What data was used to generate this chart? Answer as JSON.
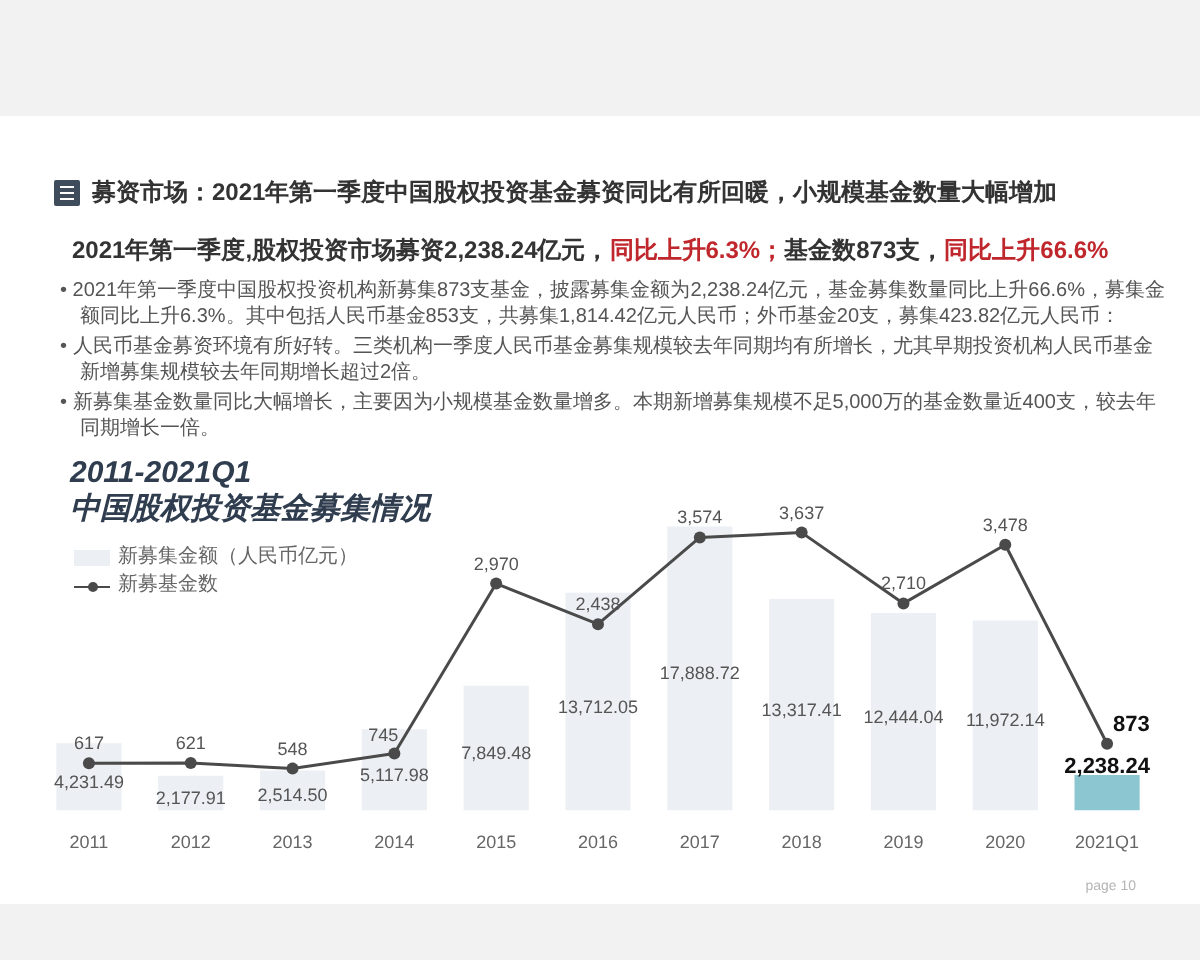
{
  "chart_data": {
    "type": "bar",
    "title": "募资市场：2021年第一季度中国股权投资基金募资同比有所回暖，小规模基金数量大幅增加",
    "subtitle": "2021年第一季度,股权投资市场募资2,238.24亿元，同比上升6.3%；基金数873支，同比上升66.6%",
    "annotations": [
      "• 2021年第一季度中国股权投资机构新募集873支基金，披露募集金额为2,238.24亿元，基金募集数量同比上升66.6%，募集金额同比上升6.3%。其中包括人民币基金853支，共募集1,814.42亿元人民币；外币基金20支，募集423.82亿元人民币：",
      "• 人民币基金募资环境有所好转。三类机构一季度人民币基金募集规模较去年同期均有所增长，尤其早期投资机构人民币基金新增募集规模较去年同期增长超过2倍。",
      "• 新募集基金数量同比大幅增长，主要因为小规模基金数量增多。本期新增募集规模不足5,000万的基金数量近400支，较去年同期增长一倍。",
      "2011-2021Q1\n中国股权投资基金募集情况",
      "page 10"
    ],
    "categories": [
      "2011",
      "2012",
      "2013",
      "2014",
      "2015",
      "2016",
      "2017",
      "2018",
      "2019",
      "2020",
      "2021Q1"
    ],
    "series": [
      {
        "name": "新募集金额（人民币亿元）",
        "color": "#eceff3",
        "colors": [
          "#eceff3",
          "#eceff3",
          "#eceff3",
          "#eceff3",
          "#eceff3",
          "#eceff3",
          "#eceff3",
          "#eceff3",
          "#eceff3",
          "#eceff3",
          "#8cc6d1"
        ],
        "values": [
          4231.49,
          2177.91,
          2514.5,
          5117.98,
          7849.48,
          13712.05,
          17888.72,
          13317.41,
          12444.04,
          11972.14,
          2238.24
        ],
        "value_labels": [
          "4,231.49",
          "2,177.91",
          "2,514.50",
          "5,117.98",
          "7,849.48",
          "13,712.05",
          "17,888.72",
          "13,317.41",
          "12,444.04",
          "11,972.14",
          "2,238.24"
        ]
      },
      {
        "name": "新募基金数",
        "type": "line",
        "axis": "y2",
        "color": "#4a4a4a",
        "marker": "circle",
        "values": [
          617,
          621,
          548,
          745,
          2970,
          2438,
          3574,
          3637,
          2710,
          3478,
          873
        ],
        "value_labels": [
          "617",
          "621",
          "548",
          "745",
          "2,970",
          "2,438",
          "3,574",
          "3,637",
          "2,710",
          "3,478",
          "873"
        ]
      }
    ],
    "legend": "top left"
  }
}
